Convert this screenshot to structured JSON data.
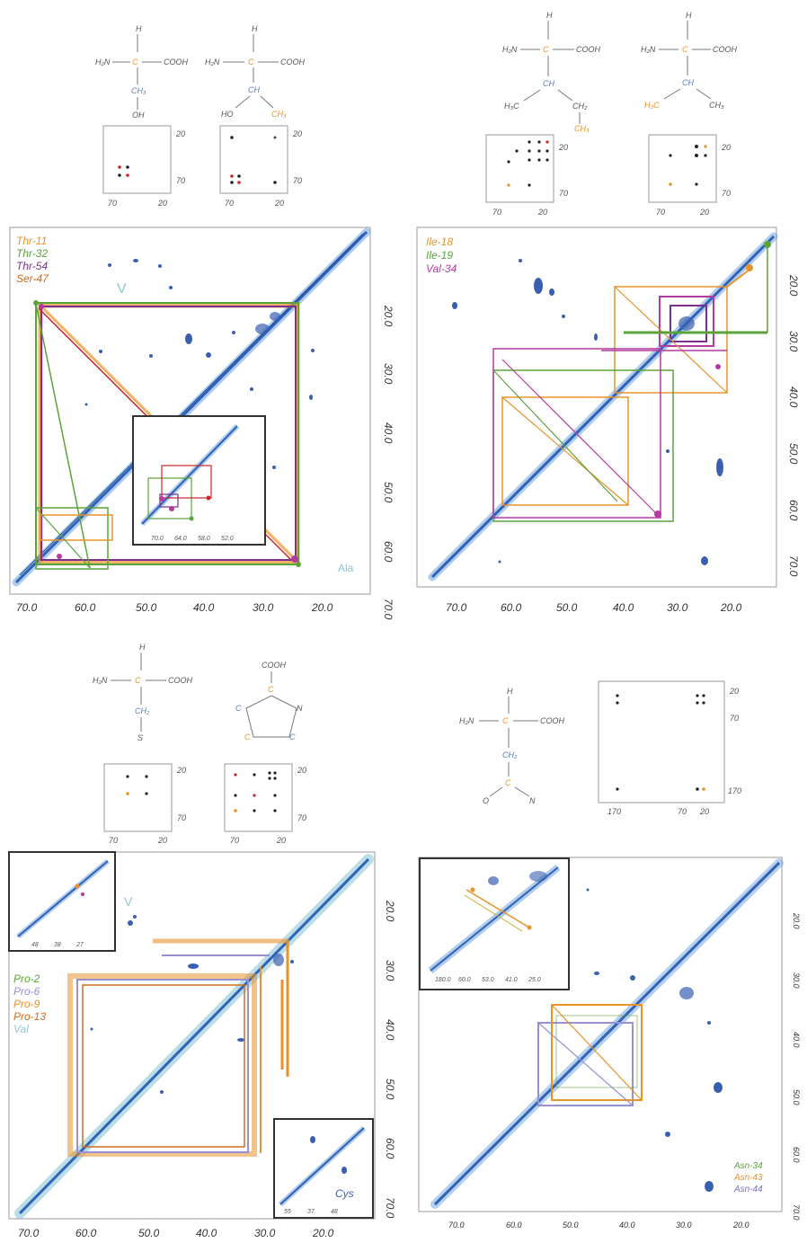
{
  "colors": {
    "diag": "#2f63b8",
    "diag_light": "#6fa3de",
    "orange": "#e8922a",
    "green": "#5aa33a",
    "purple": "#7b2f8f",
    "magenta": "#b43aa0",
    "red": "#c8252a",
    "lavender": "#9a8fd0",
    "cyan": "#8fc8d8",
    "mol": "#555555",
    "mol_orange": "#e8922a",
    "mol_blue": "#5a7fc0"
  },
  "chem": {
    "h": "H",
    "h2n": "H₂N",
    "cooh": "COOH",
    "ca": "C",
    "cb": "C",
    "ch2": "CH₂",
    "ch3": "CH₃",
    "ch": "CH",
    "oh": "OH",
    "ho": "HO",
    "s": "S",
    "o": "O",
    "n": "N",
    "cg": "C",
    "cd": "C",
    "c": "C",
    "h3c": "H₃C"
  },
  "p1": {
    "labels": [
      "Thr-11",
      "Thr-32",
      "Thr-54",
      "Ser-47"
    ],
    "inset_ticks": [
      "70.0",
      "64.0",
      "58.0",
      "52.0"
    ],
    "x_ticks": [
      "70.0",
      "60.0",
      "50.0",
      "40.0",
      "30.0",
      "20.0"
    ],
    "y_ticks": [
      "20.0",
      "30.0",
      "40.0",
      "50.0",
      "60.0",
      "70.0"
    ],
    "ann_v": "V",
    "ann_ala": "Ala",
    "mini1": {
      "t1": "20",
      "t2": "70",
      "b1": "70",
      "b2": "20"
    },
    "mini2": {
      "t1": "20",
      "t2": "70",
      "b1": "70",
      "b2": "20"
    }
  },
  "p2": {
    "labels": [
      "Ile-18",
      "Ile-19",
      "Val-34"
    ],
    "x_ticks": [
      "70.0",
      "60.0",
      "50.0",
      "40.0",
      "30.0",
      "20.0"
    ],
    "y_ticks": [
      "20.0",
      "30.0",
      "40.0",
      "50.0",
      "60.0",
      "70.0"
    ],
    "mini1": {
      "t1": "20",
      "t2": "70",
      "b1": "70",
      "b2": "20"
    },
    "mini2": {
      "t1": "20",
      "t2": "70",
      "b1": "70",
      "b2": "20"
    }
  },
  "p3": {
    "labels": [
      "Pro-2",
      "Pro-6",
      "Pro-9",
      "Pro-13",
      "Val"
    ],
    "x_ticks": [
      "70.0",
      "60.0",
      "50.0",
      "40.0",
      "30.0",
      "20.0"
    ],
    "y_ticks": [
      "20.0",
      "30.0",
      "40.0",
      "50.0",
      "60.0",
      "70.0"
    ],
    "inset_tl_ticks": [
      "48",
      "38",
      "27"
    ],
    "inset_br_ticks": [
      "55",
      "37",
      "48"
    ],
    "ann_cys": "Cys",
    "mini1": {
      "t1": "20",
      "t2": "70",
      "b1": "70",
      "b2": "20"
    },
    "mini2": {
      "t1": "20",
      "t2": "70",
      "b1": "70",
      "b2": "20"
    }
  },
  "p4": {
    "labels": [
      "Asn-34",
      "Asn-43",
      "Asn-44"
    ],
    "x_ticks": [
      "70.0",
      "60.0",
      "50.0",
      "40.0",
      "30.0",
      "20.0"
    ],
    "y_ticks": [
      "20.0",
      "30.0",
      "40.0",
      "50.0",
      "60.0",
      "70.0"
    ],
    "inset_ticks": [
      "180.0",
      "60.0",
      "53.0",
      "41.0",
      "25.0"
    ],
    "mini": {
      "t1": "20",
      "t2": "70",
      "t3": "170",
      "b1": "170",
      "b2": "70",
      "b3": "20"
    }
  }
}
